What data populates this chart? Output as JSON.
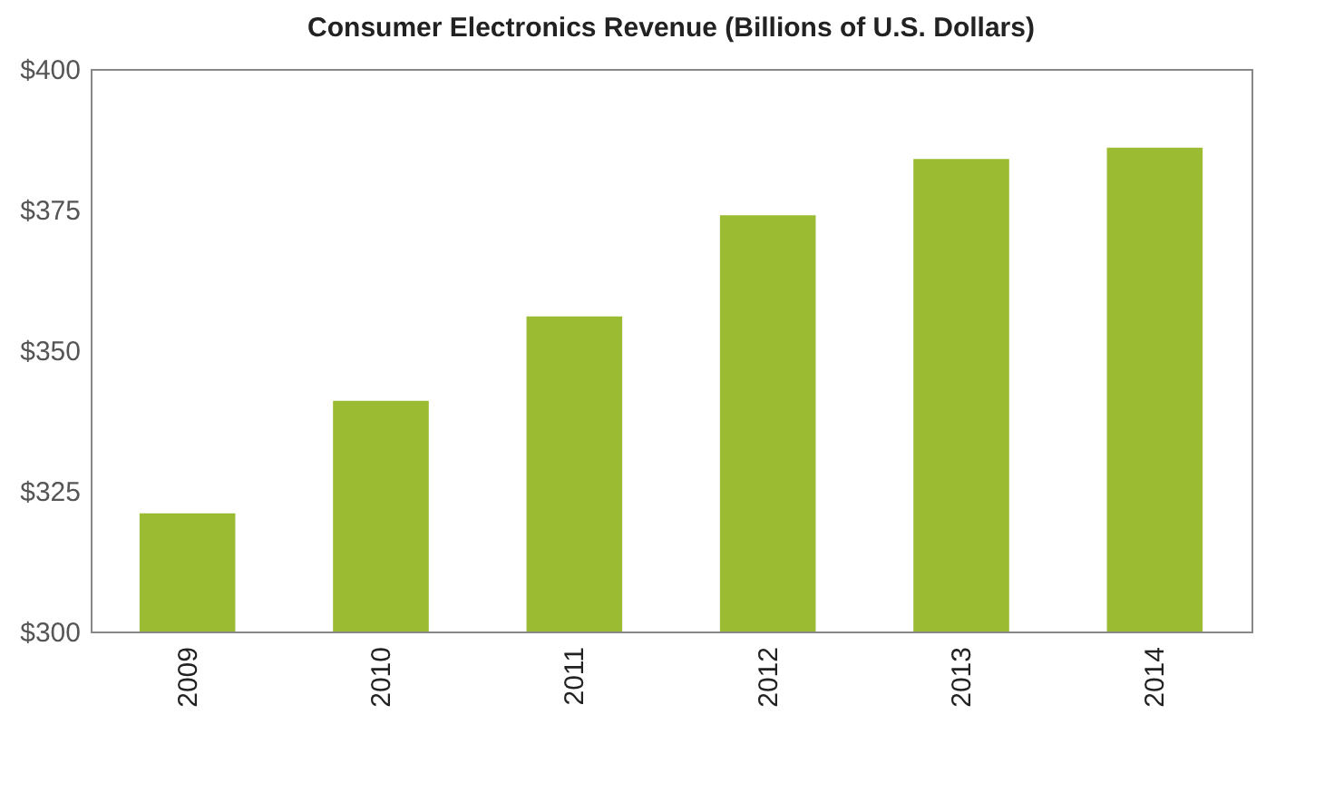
{
  "chart_data": {
    "type": "bar",
    "title": "Consumer Electronics Revenue (Billions of U.S. Dollars)",
    "categories": [
      "2009",
      "2010",
      "2011",
      "2012",
      "2013",
      "2014"
    ],
    "values": [
      321,
      341,
      356,
      374,
      384,
      386
    ],
    "color": "#9bbb33",
    "ylim": [
      300,
      400
    ],
    "yticks": [
      {
        "value": 300,
        "label": "$300"
      },
      {
        "value": 325,
        "label": "$325"
      },
      {
        "value": 350,
        "label": "$350"
      },
      {
        "value": 375,
        "label": "$375"
      },
      {
        "value": 400,
        "label": "$400"
      }
    ],
    "grid": false
  }
}
